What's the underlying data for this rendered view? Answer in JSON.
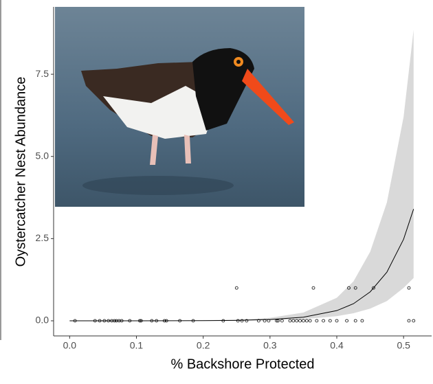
{
  "chart_data": {
    "type": "scatter",
    "x_label": "% Backshore Protected",
    "y_label": "Oystercatcher Nest Abundance",
    "xlim": [
      -0.024,
      0.542
    ],
    "ylim": [
      -0.46,
      9.55
    ],
    "xticks": [
      {
        "value": 0,
        "label": "0.0"
      },
      0.1,
      0.2,
      0.3,
      0.4,
      0.5
    ],
    "yticks": [
      {
        "value": 0,
        "label": "0.0"
      },
      2.5,
      {
        "value": 5,
        "label": "5.0"
      },
      7.5
    ],
    "color": "#000000",
    "band_color": "#d9d9d9",
    "x": [
      0.008,
      0.038,
      0.045,
      0.052,
      0.058,
      0.063,
      0.067,
      0.07,
      0.074,
      0.078,
      0.09,
      0.105,
      0.107,
      0.123,
      0.13,
      0.142,
      0.145,
      0.165,
      0.185,
      0.23,
      0.252,
      0.258,
      0.265,
      0.283,
      0.292,
      0.298,
      0.31,
      0.312,
      0.318,
      0.33,
      0.335,
      0.34,
      0.345,
      0.35,
      0.355,
      0.36,
      0.37,
      0.38,
      0.39,
      0.4,
      0.415,
      0.428,
      0.438,
      0.508,
      0.515,
      0.25,
      0.365,
      0.418,
      0.428,
      0.455,
      0.508
    ],
    "y": [
      0,
      0,
      0,
      0,
      0,
      0,
      0,
      0,
      0,
      0,
      0,
      0,
      0,
      0,
      0,
      0,
      0,
      0,
      0,
      0,
      0,
      0,
      0,
      0,
      0,
      0,
      0,
      0,
      0,
      0,
      0,
      0,
      0,
      0,
      0,
      0,
      0,
      0,
      0,
      0,
      0,
      0,
      0,
      0,
      0,
      1,
      1,
      1,
      1,
      1,
      1
    ],
    "fit": {
      "x": [
        0,
        0.1,
        0.2,
        0.25,
        0.3,
        0.35,
        0.4,
        0.425,
        0.45,
        0.475,
        0.5,
        0.515
      ],
      "y": [
        0.0001,
        0.0006,
        0.0048,
        0.0137,
        0.039,
        0.11,
        0.31,
        0.52,
        0.88,
        1.48,
        2.48,
        3.4
      ]
    },
    "band": {
      "lower": [
        0,
        0.0001,
        0.0015,
        0.005,
        0.017,
        0.05,
        0.14,
        0.23,
        0.37,
        0.6,
        1.0,
        1.3
      ],
      "upper": [
        0.002,
        0.004,
        0.015,
        0.035,
        0.09,
        0.25,
        0.7,
        1.2,
        2.1,
        3.6,
        6.2,
        8.85
      ]
    }
  }
}
